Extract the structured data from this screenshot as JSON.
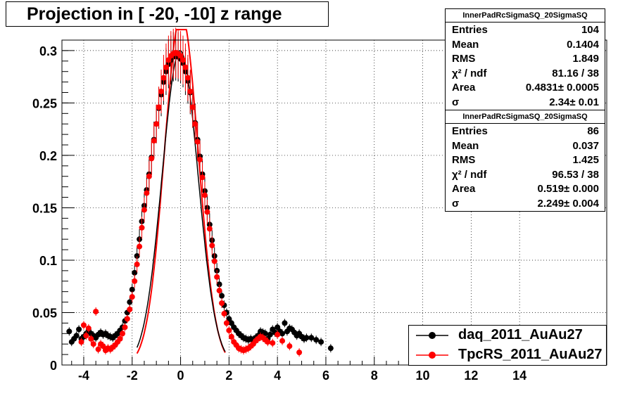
{
  "title": "Projection in [ -20, -10] z range",
  "colors": {
    "daq": "#000000",
    "tpcrs": "#ff0000",
    "grid": "#000000",
    "background": "#ffffff"
  },
  "stats_boxes": [
    {
      "name": "InnerPadRcSigmaSQ_20SigmaSQ",
      "rows": [
        {
          "key": "Entries",
          "value": "104"
        },
        {
          "key": "Mean",
          "value": "0.1404"
        },
        {
          "key": "RMS",
          "value": "1.849"
        },
        {
          "key": "χ² / ndf",
          "value": "81.16 / 38"
        },
        {
          "key": "Area",
          "value": "0.4831± 0.0005"
        },
        {
          "key": "σ",
          "value": "2.34± 0.01"
        }
      ]
    },
    {
      "name": "InnerPadRcSigmaSQ_20SigmaSQ",
      "rows": [
        {
          "key": "Entries",
          "value": "86"
        },
        {
          "key": "Mean",
          "value": "0.037"
        },
        {
          "key": "RMS",
          "value": "1.425"
        },
        {
          "key": "χ² / ndf",
          "value": "96.53 / 38"
        },
        {
          "key": "Area",
          "value": "0.519± 0.000"
        },
        {
          "key": "σ",
          "value": "2.249± 0.004"
        }
      ]
    }
  ],
  "legend": [
    {
      "label": "daq_2011_AuAu27",
      "color": "#000000"
    },
    {
      "label": "TpcRS_2011_AuAu27",
      "color": "#ff0000"
    }
  ],
  "chart_data": {
    "type": "scatter",
    "title": "Projection in [ -20, -10] z range",
    "xlabel": "",
    "ylabel": "",
    "xlim": [
      -4.9,
      17.6
    ],
    "ylim": [
      0,
      0.31
    ],
    "grid": true,
    "legend_position": "bottom-right",
    "x_ticks": [
      -4,
      -2,
      0,
      2,
      4,
      6,
      8,
      10,
      12,
      14
    ],
    "y_ticks": [
      0,
      0.05,
      0.1,
      0.15,
      0.2,
      0.25,
      0.3
    ],
    "series": [
      {
        "name": "daq_2011_AuAu27",
        "color": "#000000",
        "x": [
          -4.6,
          -4.5,
          -4.4,
          -4.3,
          -4.2,
          -4.1,
          -4.0,
          -3.9,
          -3.8,
          -3.7,
          -3.6,
          -3.5,
          -3.4,
          -3.3,
          -3.2,
          -3.1,
          -3.0,
          -2.9,
          -2.8,
          -2.7,
          -2.6,
          -2.5,
          -2.4,
          -2.3,
          -2.2,
          -2.1,
          -2.0,
          -1.9,
          -1.8,
          -1.7,
          -1.6,
          -1.5,
          -1.4,
          -1.3,
          -1.2,
          -1.1,
          -1.0,
          -0.9,
          -0.8,
          -0.7,
          -0.6,
          -0.5,
          -0.4,
          -0.3,
          -0.2,
          -0.1,
          0.0,
          0.1,
          0.2,
          0.3,
          0.4,
          0.5,
          0.6,
          0.7,
          0.8,
          0.9,
          1.0,
          1.1,
          1.2,
          1.3,
          1.4,
          1.5,
          1.6,
          1.7,
          1.8,
          1.9,
          2.0,
          2.1,
          2.2,
          2.3,
          2.4,
          2.5,
          2.6,
          2.7,
          2.8,
          2.9,
          3.0,
          3.1,
          3.2,
          3.3,
          3.4,
          3.5,
          3.6,
          3.7,
          3.8,
          3.9,
          4.0,
          4.1,
          4.2,
          4.3,
          4.4,
          4.5,
          4.6,
          4.7,
          4.8,
          4.9,
          5.0,
          5.1,
          5.2,
          5.4,
          5.6,
          5.8,
          6.2
        ],
        "y": [
          0.032,
          0.022,
          0.025,
          0.028,
          0.034,
          0.025,
          0.027,
          0.03,
          0.033,
          0.03,
          0.028,
          0.026,
          0.029,
          0.031,
          0.029,
          0.03,
          0.028,
          0.027,
          0.026,
          0.028,
          0.03,
          0.033,
          0.036,
          0.042,
          0.05,
          0.06,
          0.072,
          0.088,
          0.104,
          0.12,
          0.137,
          0.152,
          0.167,
          0.182,
          0.198,
          0.215,
          0.23,
          0.245,
          0.258,
          0.27,
          0.28,
          0.287,
          0.291,
          0.294,
          0.295,
          0.294,
          0.292,
          0.288,
          0.28,
          0.271,
          0.26,
          0.246,
          0.231,
          0.215,
          0.199,
          0.182,
          0.166,
          0.15,
          0.134,
          0.119,
          0.104,
          0.09,
          0.077,
          0.066,
          0.057,
          0.05,
          0.044,
          0.04,
          0.036,
          0.033,
          0.03,
          0.028,
          0.026,
          0.025,
          0.024,
          0.025,
          0.024,
          0.026,
          0.028,
          0.032,
          0.031,
          0.03,
          0.025,
          0.029,
          0.034,
          0.031,
          0.036,
          0.032,
          0.03,
          0.04,
          0.032,
          0.035,
          0.034,
          0.031,
          0.028,
          0.03,
          0.027,
          0.025,
          0.026,
          0.026,
          0.024,
          0.022,
          0.016
        ]
      },
      {
        "name": "TpcRS_2011_AuAu27",
        "color": "#ff0000",
        "x": [
          -4.1,
          -4.0,
          -3.9,
          -3.8,
          -3.7,
          -3.6,
          -3.5,
          -3.4,
          -3.3,
          -3.2,
          -3.1,
          -3.0,
          -2.9,
          -2.8,
          -2.7,
          -2.6,
          -2.5,
          -2.4,
          -2.3,
          -2.2,
          -2.1,
          -2.0,
          -1.9,
          -1.8,
          -1.7,
          -1.6,
          -1.5,
          -1.4,
          -1.3,
          -1.2,
          -1.1,
          -1.0,
          -0.9,
          -0.8,
          -0.7,
          -0.6,
          -0.5,
          -0.4,
          -0.3,
          -0.2,
          -0.1,
          0.0,
          0.1,
          0.2,
          0.3,
          0.4,
          0.5,
          0.6,
          0.7,
          0.8,
          0.9,
          1.0,
          1.1,
          1.2,
          1.3,
          1.4,
          1.5,
          1.6,
          1.7,
          1.8,
          1.9,
          2.0,
          2.1,
          2.2,
          2.3,
          2.4,
          2.5,
          2.6,
          2.7,
          2.8,
          2.9,
          3.0,
          3.1,
          3.2,
          3.3,
          3.4,
          3.5,
          3.6,
          3.8,
          4.0,
          4.2,
          4.5,
          4.9
        ],
        "y": [
          0.022,
          0.038,
          0.028,
          0.035,
          0.025,
          0.02,
          0.051,
          0.015,
          0.02,
          0.018,
          0.014,
          0.016,
          0.015,
          0.017,
          0.019,
          0.022,
          0.025,
          0.03,
          0.036,
          0.044,
          0.053,
          0.065,
          0.08,
          0.096,
          0.113,
          0.131,
          0.148,
          0.164,
          0.18,
          0.197,
          0.214,
          0.23,
          0.246,
          0.261,
          0.274,
          0.284,
          0.291,
          0.295,
          0.297,
          0.298,
          0.297,
          0.295,
          0.291,
          0.284,
          0.274,
          0.261,
          0.246,
          0.23,
          0.213,
          0.196,
          0.179,
          0.162,
          0.146,
          0.13,
          0.114,
          0.099,
          0.084,
          0.071,
          0.059,
          0.049,
          0.04,
          0.033,
          0.027,
          0.022,
          0.019,
          0.016,
          0.015,
          0.014,
          0.015,
          0.016,
          0.018,
          0.02,
          0.023,
          0.025,
          0.027,
          0.026,
          0.024,
          0.022,
          0.021,
          0.029,
          0.023,
          0.018,
          0.012
        ]
      }
    ]
  }
}
